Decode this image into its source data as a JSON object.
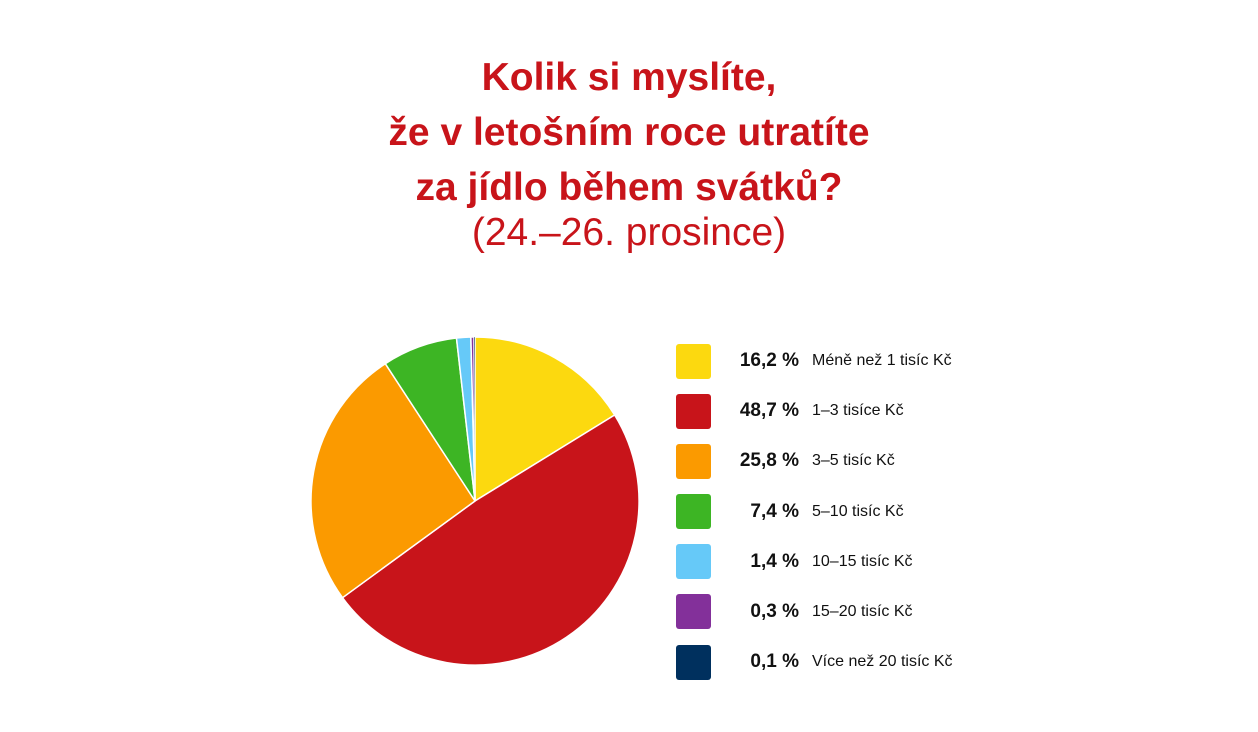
{
  "chart_data": {
    "type": "pie",
    "title_lines": [
      "Kolik si myslíte,",
      "že v letošním roce utratíte",
      "za jídlo během svátků?"
    ],
    "subtitle": "(24.–26. prosince)",
    "legend_position": "right",
    "slices": [
      {
        "label": "Méně než 1 tisíc Kč",
        "value": 16.2,
        "value_text": "16,2 %",
        "color": "#fcd90f"
      },
      {
        "label": "1–3 tisíce Kč",
        "value": 48.7,
        "value_text": "48,7 %",
        "color": "#c8141a"
      },
      {
        "label": "3–5 tisíc Kč",
        "value": 25.8,
        "value_text": "25,8 %",
        "color": "#fb9a00"
      },
      {
        "label": "5–10 tisíc Kč",
        "value": 7.4,
        "value_text": "7,4 %",
        "color": "#3db524"
      },
      {
        "label": "10–15 tisíc Kč",
        "value": 1.4,
        "value_text": "1,4 %",
        "color": "#66c9f8"
      },
      {
        "label": "15–20 tisíc Kč",
        "value": 0.3,
        "value_text": "0,3 %",
        "color": "#83309a"
      },
      {
        "label": "Více než 20 tisíc Kč",
        "value": 0.1,
        "value_text": "0,1 %",
        "color": "#00305e"
      }
    ]
  }
}
